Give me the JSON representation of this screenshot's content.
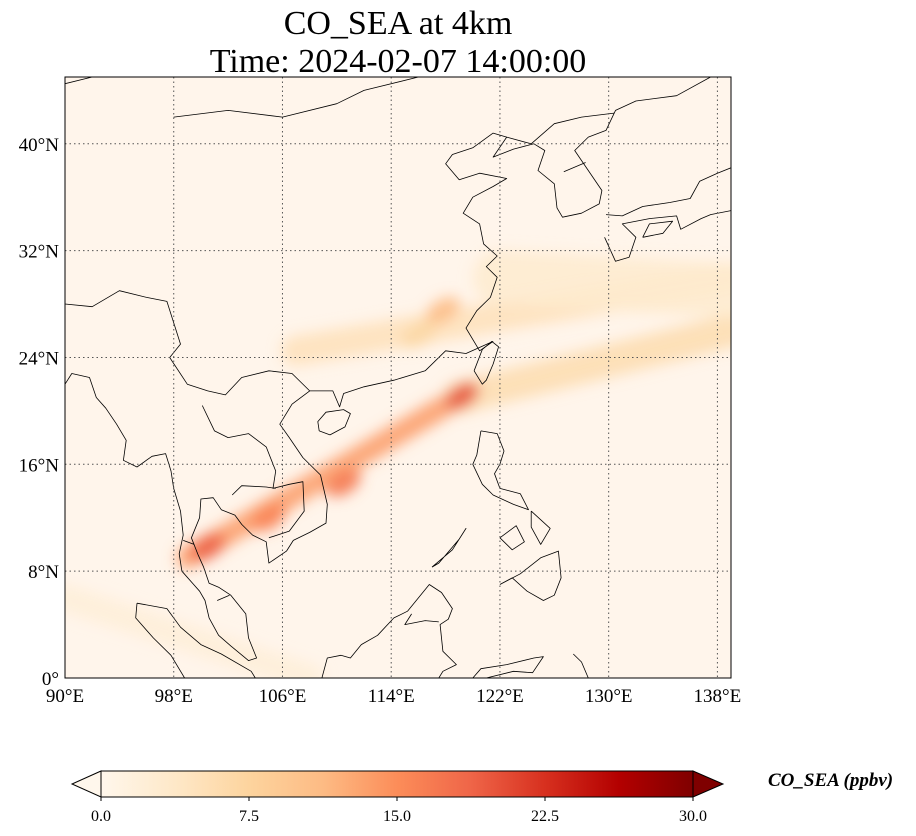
{
  "title": {
    "line1": "CO_SEA at 4km",
    "line2": "Time: 2024-02-07 14:00:00"
  },
  "map": {
    "projection": "PlateCarree",
    "extent": {
      "lon_min": 90,
      "lon_max": 139,
      "lat_min": 0,
      "lat_max": 45
    },
    "gridlines": true,
    "gridline_style": "dotted",
    "coastlines": true,
    "borders": true,
    "lon_ticks": [
      {
        "value": 90,
        "label": "90°E"
      },
      {
        "value": 98,
        "label": "98°E"
      },
      {
        "value": 106,
        "label": "106°E"
      },
      {
        "value": 114,
        "label": "114°E"
      },
      {
        "value": 122,
        "label": "122°E"
      },
      {
        "value": 130,
        "label": "130°E"
      },
      {
        "value": 138,
        "label": "138°E"
      }
    ],
    "lat_ticks": [
      {
        "value": 0,
        "label": "0°"
      },
      {
        "value": 8,
        "label": "8°N"
      },
      {
        "value": 16,
        "label": "16°N"
      },
      {
        "value": 24,
        "label": "24°N"
      },
      {
        "value": 32,
        "label": "32°N"
      },
      {
        "value": 40,
        "label": "40°N"
      }
    ],
    "background_color": "#fff5eb",
    "plumes": [
      {
        "name": "south-plume-core",
        "lon1": 99,
        "lat1": 9,
        "lon2": 119,
        "lat2": 21,
        "width_deg": 1.6,
        "value": 14
      },
      {
        "name": "south-plume-east",
        "lon1": 119,
        "lat1": 21,
        "lon2": 139,
        "lat2": 26,
        "width_deg": 2.4,
        "value": 6
      },
      {
        "name": "north-plume",
        "lon1": 107,
        "lat1": 24.5,
        "lon2": 139,
        "lat2": 30,
        "width_deg": 2.2,
        "value": 5
      },
      {
        "name": "north-plume-wide",
        "lon1": 122,
        "lat1": 30,
        "lon2": 139,
        "lat2": 29,
        "width_deg": 4,
        "value": 3
      },
      {
        "name": "malay-plume",
        "lon1": 90,
        "lat1": 6,
        "lon2": 108,
        "lat2": 0,
        "width_deg": 2,
        "value": 2
      }
    ],
    "hotspots": [
      {
        "lon": 100.5,
        "lat": 9.8,
        "value": 19
      },
      {
        "lon": 105,
        "lat": 12,
        "value": 16
      },
      {
        "lon": 110.5,
        "lat": 14.6,
        "value": 17
      },
      {
        "lon": 119.2,
        "lat": 21.1,
        "value": 20
      },
      {
        "lon": 117.8,
        "lat": 27.5,
        "value": 11
      },
      {
        "lon": 116,
        "lat": 25.7,
        "value": 7
      }
    ]
  },
  "colorbar": {
    "label": "CO_SEA (ppbv)",
    "cmap": "OrRd",
    "vmin": 0,
    "vmax": 30,
    "extend": "both",
    "stops": [
      "#fff7ec",
      "#fee8c8",
      "#fdd49e",
      "#fdbb84",
      "#fc8d59",
      "#ef6548",
      "#d7301f",
      "#b30000",
      "#7f0000"
    ],
    "ticks": [
      {
        "value": 0,
        "label": "0.0"
      },
      {
        "value": 7.5,
        "label": "7.5"
      },
      {
        "value": 15,
        "label": "15.0"
      },
      {
        "value": 22.5,
        "label": "22.5"
      },
      {
        "value": 30,
        "label": "30.0"
      }
    ]
  }
}
